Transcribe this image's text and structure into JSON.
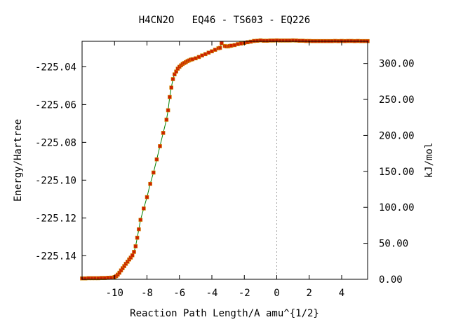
{
  "chart_data": {
    "type": "line",
    "title": "H4CN2O   EQ46 - TS603 - EQ226",
    "xlabel": "Reaction Path Length/A amu^{1/2}",
    "ylabel": "Energy/Hartree",
    "y2label": "kJ/mol",
    "xlim": [
      -12.0,
      5.6
    ],
    "ylim": [
      -225.1525,
      -225.0265
    ],
    "y2lim": [
      0.0,
      330.8
    ],
    "x_ticks": [
      -10,
      -8,
      -6,
      -4,
      -2,
      0,
      2,
      4
    ],
    "x_tick_labels": [
      "-10",
      "-8",
      "-6",
      "-4",
      "-2",
      "0",
      "2",
      "4"
    ],
    "y_ticks": [
      -225.14,
      -225.12,
      -225.1,
      -225.08,
      -225.06,
      -225.04
    ],
    "y_tick_labels": [
      "-225.14",
      "-225.12",
      "-225.10",
      "-225.08",
      "-225.06",
      "-225.04"
    ],
    "y2_ticks": [
      0,
      50,
      100,
      150,
      200,
      250,
      300
    ],
    "y2_tick_labels": [
      "0.00",
      "50.00",
      "100.00",
      "150.00",
      "200.00",
      "250.00",
      "300.00"
    ],
    "colors": {
      "line": "#008000",
      "marker": "#cc2200",
      "marker_edge": "#d28a00",
      "ts_line": "#a0a0a0"
    },
    "series": [
      {
        "x": [
          -12.0,
          -11.8,
          -11.6,
          -11.4,
          -11.2,
          -11.0,
          -10.8,
          -10.6,
          -10.4,
          -10.2,
          -10.0,
          -9.9,
          -9.8,
          -9.7,
          -9.6,
          -9.5,
          -9.4,
          -9.3,
          -9.2,
          -9.1,
          -9.0,
          -8.9,
          -8.8,
          -8.7,
          -8.6,
          -8.5,
          -8.4,
          -8.2,
          -8.0,
          -7.8,
          -7.6,
          -7.4,
          -7.2,
          -7.0,
          -6.8,
          -6.7,
          -6.6,
          -6.5,
          -6.4,
          -6.3,
          -6.2,
          -6.1,
          -6.0,
          -5.9,
          -5.8,
          -5.7,
          -5.6,
          -5.5,
          -5.4,
          -5.3,
          -5.2,
          -5.0,
          -4.8,
          -4.6,
          -4.4,
          -4.2,
          -4.0,
          -3.8,
          -3.6,
          -3.5,
          -3.4,
          -3.2,
          -3.1,
          -3.0,
          -2.9,
          -2.8,
          -2.6,
          -2.4,
          -2.2,
          -2.0,
          -1.8,
          -1.6,
          -1.4,
          -1.2,
          -1.0,
          -0.8,
          -0.6,
          -0.4,
          -0.2,
          0.0,
          0.2,
          0.4,
          0.6,
          0.8,
          1.0,
          1.2,
          1.4,
          1.6,
          1.8,
          2.0,
          2.2,
          2.4,
          2.6,
          2.8,
          3.0,
          3.2,
          3.4,
          3.6,
          3.8,
          4.0,
          4.2,
          4.4,
          4.6,
          4.8,
          5.0,
          5.2,
          5.4,
          5.6
        ],
        "y": [
          -225.152,
          -225.152,
          -225.1519,
          -225.1519,
          -225.1519,
          -225.1519,
          -225.1518,
          -225.1518,
          -225.1517,
          -225.1516,
          -225.1513,
          -225.1508,
          -225.15,
          -225.149,
          -225.1478,
          -225.1466,
          -225.1455,
          -225.1443,
          -225.1432,
          -225.142,
          -225.141,
          -225.1398,
          -225.138,
          -225.135,
          -225.1305,
          -225.126,
          -225.121,
          -225.115,
          -225.109,
          -225.102,
          -225.096,
          -225.089,
          -225.082,
          -225.075,
          -225.068,
          -225.063,
          -225.056,
          -225.051,
          -225.0465,
          -225.044,
          -225.0425,
          -225.041,
          -225.04,
          -225.0392,
          -225.0385,
          -225.038,
          -225.0375,
          -225.037,
          -225.0366,
          -225.0362,
          -225.036,
          -225.0355,
          -225.0348,
          -225.034,
          -225.0333,
          -225.0325,
          -225.0318,
          -225.031,
          -225.0302,
          -225.03,
          -225.0275,
          -225.029,
          -225.0292,
          -225.0292,
          -225.029,
          -225.0288,
          -225.0285,
          -225.028,
          -225.0277,
          -225.0273,
          -225.027,
          -225.0267,
          -225.0263,
          -225.0262,
          -225.026,
          -225.0262,
          -225.0262,
          -225.0261,
          -225.0261,
          -225.026,
          -225.0261,
          -225.0261,
          -225.0261,
          -225.0261,
          -225.026,
          -225.0261,
          -225.0262,
          -225.0262,
          -225.0263,
          -225.0263,
          -225.0264,
          -225.0264,
          -225.0264,
          -225.0264,
          -225.0264,
          -225.0264,
          -225.0264,
          -225.0263,
          -225.0264,
          -225.0263,
          -225.0264,
          -225.0263,
          -225.0263,
          -225.0264,
          -225.0263,
          -225.0264,
          -225.0264,
          -225.0264
        ]
      }
    ]
  }
}
